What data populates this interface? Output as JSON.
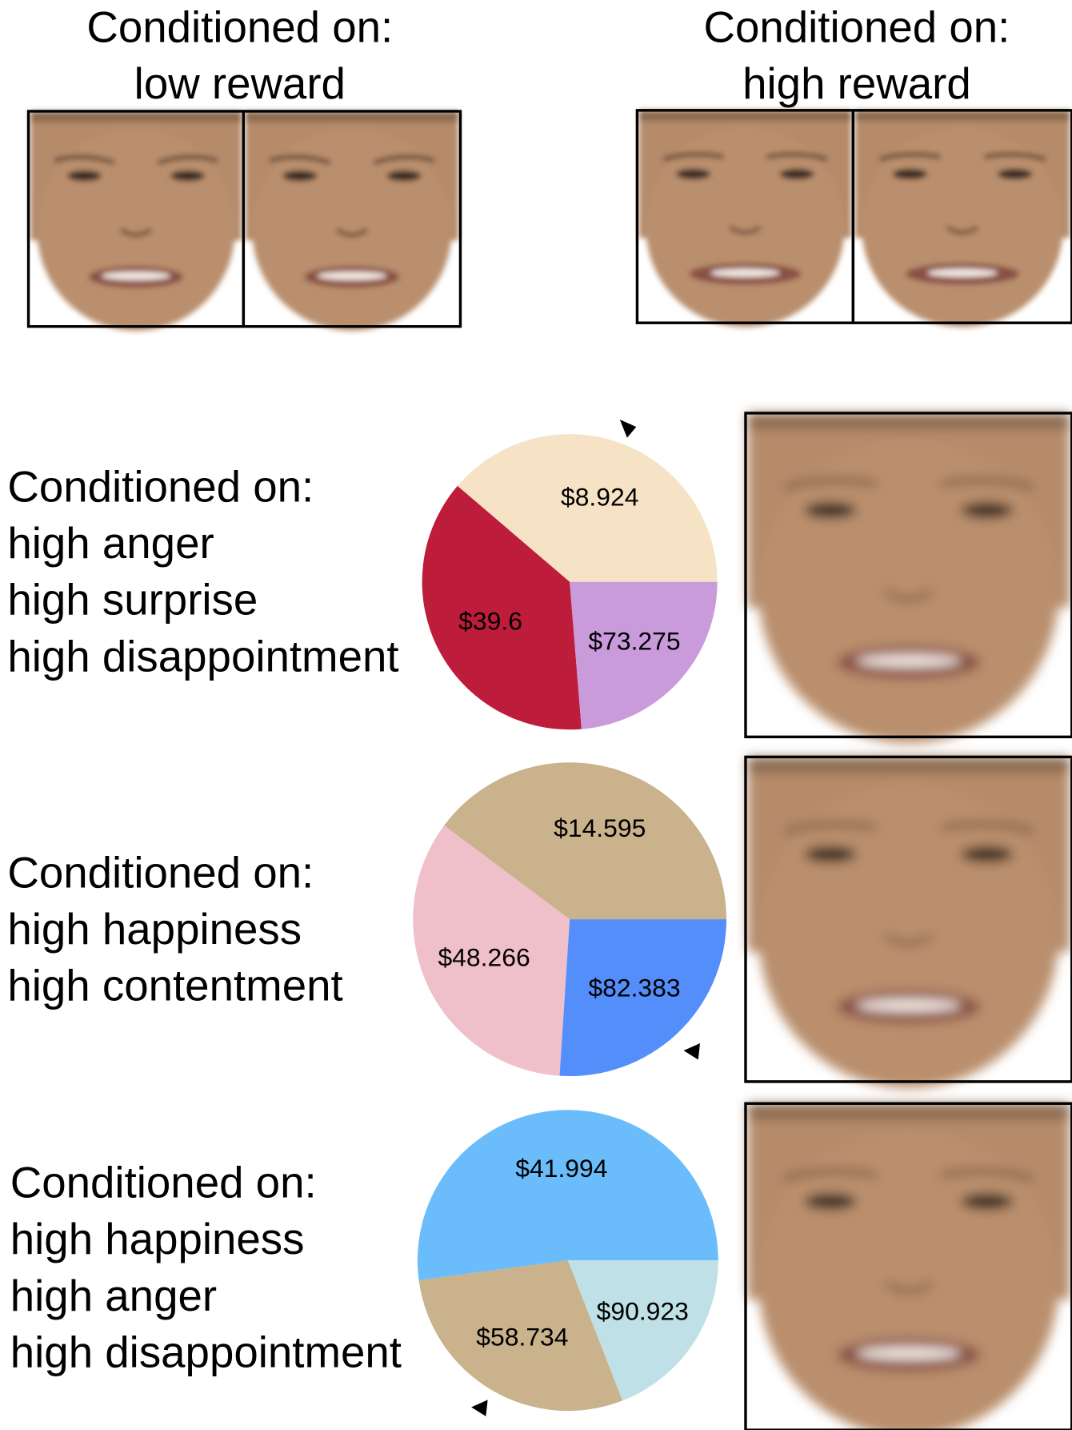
{
  "top_panels": [
    {
      "heading": "Conditioned on:",
      "condition": "low reward"
    },
    {
      "heading": "Conditioned on:",
      "condition": "high reward"
    }
  ],
  "rows": [
    {
      "heading": "Conditioned on:",
      "conditions": [
        "high anger",
        "high surprise",
        "high disappointment"
      ],
      "wheel": [
        {
          "label": "$8.924",
          "color": "#f6e3c6"
        },
        {
          "label": "$39.6",
          "color": "#be1c3b"
        },
        {
          "label": "$73.275",
          "color": "#c99bdb"
        }
      ]
    },
    {
      "heading": "Conditioned on:",
      "conditions": [
        "high happiness",
        "high contentment"
      ],
      "wheel": [
        {
          "label": "$14.595",
          "color": "#c9b28c"
        },
        {
          "label": "$48.266",
          "color": "#efc0c9"
        },
        {
          "label": "$82.383",
          "color": "#548efa"
        }
      ]
    },
    {
      "heading": "Conditioned on:",
      "conditions": [
        "high happiness",
        "high anger",
        "high disappointment"
      ],
      "wheel": [
        {
          "label": "$41.994",
          "color": "#6bbcfa"
        },
        {
          "label": "$58.734",
          "color": "#c9b28c"
        },
        {
          "label": "$90.923",
          "color": "#bfe0e6"
        }
      ]
    }
  ]
}
